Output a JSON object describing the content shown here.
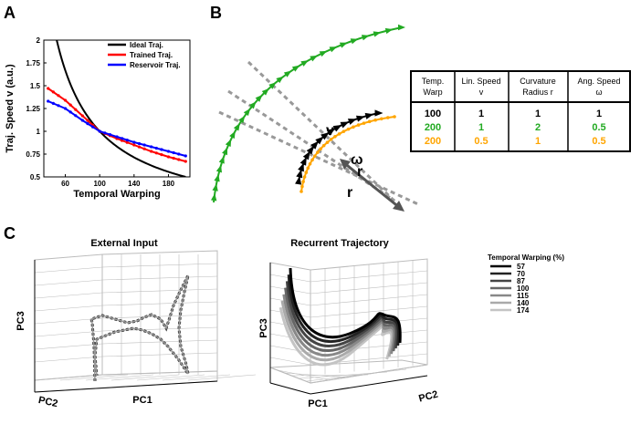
{
  "panels": {
    "a": "A",
    "b": "B",
    "c": "C"
  },
  "chart_data": [
    {
      "type": "line",
      "panel": "A",
      "xlabel": "Temporal Warping",
      "ylabel": "Traj.  Speed v (a.u.)",
      "x_ticks": [
        60,
        100,
        140,
        180
      ],
      "y_ticks": [
        "2",
        "1.75",
        "1.5",
        "1.25",
        "1",
        "0.75",
        "0.5"
      ],
      "xlim": [
        35,
        205
      ],
      "ylim": [
        0.5,
        2
      ],
      "legend_position": "top-right",
      "series": [
        {
          "name": "Ideal Traj.",
          "color": "#000000",
          "x": [
            40,
            50,
            60,
            70,
            80,
            90,
            100,
            110,
            120,
            130,
            140,
            150,
            160,
            170,
            180,
            190,
            200
          ],
          "y": [
            2.5,
            2.0,
            1.667,
            1.429,
            1.25,
            1.111,
            1.0,
            0.909,
            0.833,
            0.769,
            0.714,
            0.667,
            0.625,
            0.588,
            0.556,
            0.526,
            0.5
          ]
        },
        {
          "name": "Trained Traj.",
          "color": "#ff0000",
          "x": [
            40,
            60,
            80,
            100,
            120,
            140,
            160,
            180,
            200
          ],
          "y": [
            1.47,
            1.34,
            1.17,
            1.0,
            0.92,
            0.85,
            0.78,
            0.72,
            0.67
          ]
        },
        {
          "name": "Reservoir Traj.",
          "color": "#0000ff",
          "x": [
            40,
            60,
            80,
            100,
            120,
            140,
            160,
            180,
            200
          ],
          "y": [
            1.33,
            1.25,
            1.12,
            1.0,
            0.94,
            0.88,
            0.83,
            0.78,
            0.73
          ]
        }
      ]
    },
    {
      "type": "line",
      "panel": "C-left",
      "title": "External Input",
      "xlabel": "PC1",
      "zlabel": "PC3",
      "ylabel": "PC2"
    },
    {
      "type": "line",
      "panel": "C-right",
      "title": "Recurrent Trajectory",
      "xlabel": "PC1",
      "zlabel": "PC3",
      "ylabel": "PC2",
      "legend_title": "Temporal Warping (%)",
      "legend_position": "right",
      "series": [
        {
          "name": "57",
          "color": "#000000"
        },
        {
          "name": "70",
          "color": "#222222"
        },
        {
          "name": "87",
          "color": "#444444"
        },
        {
          "name": "100",
          "color": "#666666"
        },
        {
          "name": "115",
          "color": "#888888"
        },
        {
          "name": "140",
          "color": "#aaaaaa"
        },
        {
          "name": "174",
          "color": "#c4c4c4"
        }
      ]
    }
  ],
  "panel_b": {
    "labels": {
      "v": "v",
      "omega": "ω",
      "r_small": "r",
      "r_big": "r"
    },
    "colors": {
      "green": "#22aa22",
      "orange": "#ffa500",
      "black": "#000000",
      "gray": "#999999"
    },
    "table": {
      "headers": [
        [
          "Temp.",
          "Warp"
        ],
        [
          "Lin. Speed",
          "v"
        ],
        [
          "Curvature",
          "Radius r"
        ],
        [
          "Ang. Speed",
          "ω"
        ]
      ],
      "rows": [
        {
          "color": "#000000",
          "cells": [
            "100",
            "1",
            "1",
            "1"
          ]
        },
        {
          "color": "#22aa22",
          "cells": [
            "200",
            "1",
            "2",
            "0.5"
          ]
        },
        {
          "color": "#ffa500",
          "cells": [
            "200",
            "0.5",
            "1",
            "0.5"
          ]
        }
      ]
    }
  }
}
